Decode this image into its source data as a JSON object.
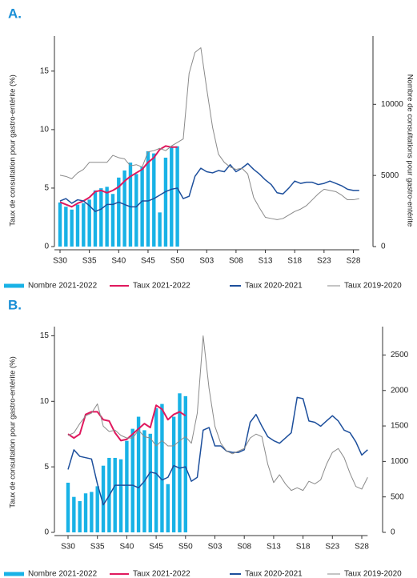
{
  "chart_data": [
    {
      "type": "combo",
      "title": "A.",
      "ylabel": "Taux de consultation pour gastro-entérite (%)",
      "y2label": "Nombre de consultations pour gastro-entérite",
      "categories": [
        "S30",
        null,
        null,
        null,
        null,
        "S35",
        null,
        null,
        null,
        null,
        "S40",
        null,
        null,
        null,
        null,
        "S45",
        null,
        null,
        null,
        null,
        "S50",
        null,
        null,
        null,
        null,
        "S03",
        null,
        null,
        null,
        null,
        "S08",
        null,
        null,
        null,
        null,
        "S13",
        null,
        null,
        null,
        null,
        "S18",
        null,
        null,
        null,
        null,
        "S23",
        null,
        null,
        null,
        null,
        "S28",
        null
      ],
      "ylim": [
        0,
        18
      ],
      "yticks": [
        0,
        5,
        10,
        15
      ],
      "y2lim": [
        0,
        14800
      ],
      "y2ticks": [
        0,
        5000,
        10000
      ],
      "series": [
        {
          "name": "Nombre 2021-2022",
          "type": "bar",
          "axis": "y2",
          "color": "#18b2e6",
          "values": [
            3100,
            2800,
            2600,
            2950,
            3050,
            3300,
            3950,
            4100,
            4200,
            3700,
            4850,
            5350,
            5900,
            5100,
            5600,
            6700,
            6550,
            2400,
            6250,
            7050,
            7050,
            null,
            null,
            null,
            null,
            null,
            null,
            null,
            null,
            null,
            null,
            null,
            null,
            null,
            null,
            null,
            null,
            null,
            null,
            null,
            null,
            null,
            null,
            null,
            null,
            null,
            null,
            null,
            null,
            null,
            null,
            null
          ]
        },
        {
          "name": "Taux 2021-2022",
          "type": "line",
          "color": "#e0195e",
          "values": [
            3.8,
            3.6,
            3.4,
            3.7,
            3.9,
            4.2,
            4.7,
            4.8,
            4.6,
            4.8,
            5.1,
            5.6,
            6.0,
            6.3,
            6.6,
            7.2,
            7.6,
            8.3,
            8.6,
            8.5,
            8.5,
            null,
            null,
            null,
            null,
            null,
            null,
            null,
            null,
            null,
            null,
            null,
            null,
            null,
            null,
            null,
            null,
            null,
            null,
            null,
            null,
            null,
            null,
            null,
            null,
            null,
            null,
            null,
            null,
            null,
            null,
            null
          ]
        },
        {
          "name": "Taux 2020-2021",
          "type": "line",
          "color": "#1d4f9c",
          "values": [
            3.9,
            4.1,
            3.7,
            4.0,
            3.9,
            3.5,
            3.0,
            3.2,
            3.6,
            3.6,
            3.8,
            3.6,
            3.4,
            3.4,
            3.9,
            3.9,
            4.1,
            4.4,
            4.7,
            4.9,
            5.0,
            4.1,
            4.3,
            6.0,
            6.7,
            6.4,
            6.3,
            6.5,
            6.4,
            7.0,
            6.4,
            6.7,
            7.1,
            6.6,
            6.2,
            5.7,
            5.3,
            4.6,
            4.5,
            5.0,
            5.6,
            5.4,
            5.5,
            5.5,
            5.3,
            5.4,
            5.6,
            5.4,
            5.2,
            4.9,
            4.8,
            4.8
          ]
        },
        {
          "name": "Taux 2019-2020",
          "type": "line",
          "color": "#8a8a8a",
          "values": [
            6.1,
            6.0,
            5.8,
            6.3,
            6.6,
            7.2,
            7.2,
            7.2,
            7.2,
            7.8,
            7.6,
            7.5,
            6.9,
            7.0,
            6.8,
            8.1,
            8.2,
            8.4,
            8.2,
            8.6,
            8.9,
            9.2,
            14.8,
            16.6,
            17.0,
            13.5,
            10.2,
            7.9,
            7.2,
            6.8,
            6.6,
            6.7,
            6.2,
            4.2,
            3.3,
            2.5,
            2.4,
            2.3,
            2.4,
            2.7,
            3.0,
            3.2,
            3.5,
            4.0,
            4.5,
            4.9,
            4.8,
            4.7,
            4.4,
            4.0,
            4.0,
            4.1
          ]
        }
      ]
    },
    {
      "type": "combo",
      "title": "B.",
      "ylabel": "Taux de consultation pour gastro-entérite (%)",
      "categories": [
        "S30",
        null,
        null,
        null,
        null,
        "S35",
        null,
        null,
        null,
        null,
        "S40",
        null,
        null,
        null,
        null,
        "S45",
        null,
        null,
        null,
        null,
        "S50",
        null,
        null,
        null,
        null,
        "S03",
        null,
        null,
        null,
        null,
        "S08",
        null,
        null,
        null,
        null,
        "S13",
        null,
        null,
        null,
        null,
        "S18",
        null,
        null,
        null,
        null,
        "S23",
        null,
        null,
        null,
        null,
        "S28",
        null
      ],
      "ylim": [
        0,
        15.7
      ],
      "yticks": [
        0,
        5,
        10,
        15
      ],
      "y2lim": [
        0,
        2900
      ],
      "y2ticks": [
        0,
        500,
        1000,
        1500,
        2000,
        2500
      ],
      "series": [
        {
          "name": "Nombre 2021-2022",
          "type": "bar",
          "axis": "y2",
          "color": "#18b2e6",
          "values": [
            700,
            500,
            440,
            550,
            570,
            650,
            940,
            1050,
            1050,
            1030,
            1290,
            1460,
            1630,
            1440,
            1390,
            1750,
            1810,
            680,
            1630,
            1960,
            1920,
            null,
            null,
            null,
            null,
            null,
            null,
            null,
            null,
            null,
            null,
            null,
            null,
            null,
            null,
            null,
            null,
            null,
            null,
            null,
            null,
            null,
            null,
            null,
            null,
            null,
            null,
            null,
            null,
            null,
            null,
            null
          ]
        },
        {
          "name": "Taux 2021-2022",
          "type": "line",
          "color": "#e0195e",
          "values": [
            7.5,
            7.2,
            7.5,
            9.0,
            9.2,
            9.2,
            8.6,
            8.5,
            7.6,
            7.0,
            7.1,
            7.5,
            7.9,
            8.3,
            8.0,
            9.7,
            9.4,
            8.6,
            9.0,
            9.2,
            8.9,
            null,
            null,
            null,
            null,
            null,
            null,
            null,
            null,
            null,
            null,
            null,
            null,
            null,
            null,
            null,
            null,
            null,
            null,
            null,
            null,
            null,
            null,
            null,
            null,
            null,
            null,
            null,
            null,
            null,
            null,
            null
          ]
        },
        {
          "name": "Taux 2020-2021",
          "type": "line",
          "color": "#1d4f9c",
          "values": [
            4.8,
            6.3,
            5.8,
            5.7,
            5.6,
            3.7,
            2.1,
            2.8,
            3.6,
            3.6,
            3.6,
            3.6,
            3.4,
            3.9,
            4.6,
            4.5,
            4.0,
            4.2,
            5.1,
            4.9,
            5.0,
            3.9,
            4.2,
            7.8,
            8.0,
            6.6,
            6.6,
            6.2,
            6.1,
            6.1,
            6.3,
            8.4,
            9.0,
            8.1,
            7.3,
            7.0,
            6.8,
            7.2,
            7.6,
            10.3,
            10.2,
            8.5,
            8.4,
            8.1,
            8.5,
            8.9,
            8.5,
            7.8,
            7.6,
            6.9,
            5.9,
            6.3
          ]
        },
        {
          "name": "Taux 2019-2020",
          "type": "line",
          "color": "#8a8a8a",
          "values": [
            7.4,
            7.6,
            8.3,
            8.9,
            9.1,
            9.8,
            8.1,
            7.7,
            7.8,
            7.4,
            7.2,
            7.2,
            7.8,
            7.3,
            7.2,
            6.6,
            7.0,
            6.6,
            6.6,
            7.0,
            7.3,
            6.8,
            9.1,
            15.0,
            11.0,
            8.1,
            6.8,
            6.2,
            6.0,
            6.2,
            6.4,
            7.2,
            7.5,
            7.3,
            5.2,
            3.8,
            4.4,
            3.7,
            3.2,
            3.4,
            3.2,
            3.9,
            3.7,
            4.0,
            5.2,
            6.1,
            6.4,
            5.7,
            4.5,
            3.5,
            3.3,
            4.2
          ]
        }
      ]
    }
  ]
}
